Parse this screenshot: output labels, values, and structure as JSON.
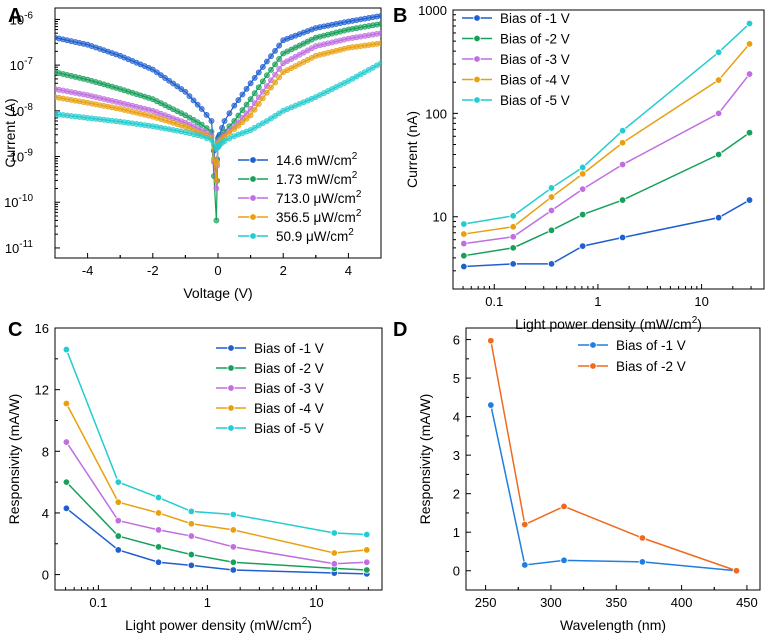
{
  "chart_data": [
    {
      "panel": "A",
      "type": "scatter",
      "xlabel": "Voltage (V)",
      "ylabel": "Current (A)",
      "yscale": "log",
      "xlim": [
        -5,
        5
      ],
      "ylim_exp": [
        -11,
        -6
      ],
      "xticks": [
        -4,
        -2,
        0,
        2,
        4
      ],
      "yticks_exp": [
        -11,
        -10,
        -9,
        -8,
        -7,
        -6
      ],
      "ytick_labels": [
        "10",
        "10",
        "10",
        "10",
        "10",
        "10"
      ],
      "ytick_sups": [
        "-11",
        "-10",
        "-9",
        "-8",
        "-7",
        "-6"
      ],
      "legend_position": "bottom-right",
      "series": [
        {
          "name": "14.6 mW/cm",
          "sup": "2",
          "color": "#1f5fd0",
          "x": [
            -5,
            -4,
            -3,
            -2,
            -1,
            -0.5,
            -0.2,
            -0.05,
            0,
            0.05,
            0.2,
            0.5,
            1,
            1.5,
            2,
            3,
            4,
            5
          ],
          "y": [
            4e-07,
            2.8e-07,
            1.6e-07,
            8e-08,
            2.6e-08,
            1.1e-08,
            6e-09,
            3e-10,
            2.5e-09,
            3e-09,
            6e-09,
            1.3e-08,
            4e-08,
            1.2e-07,
            3.5e-07,
            6.5e-07,
            9e-07,
            1.2e-06
          ]
        },
        {
          "name": "1.73 mW/cm",
          "sup": "2",
          "color": "#17a05a",
          "x": [
            -5,
            -4,
            -3,
            -2,
            -1,
            -0.5,
            -0.2,
            -0.05,
            0,
            0.05,
            0.2,
            0.5,
            1,
            1.5,
            2,
            3,
            4,
            5
          ],
          "y": [
            7e-08,
            4.8e-08,
            3e-08,
            1.8e-08,
            8e-09,
            5e-09,
            3.5e-09,
            4e-11,
            2.2e-09,
            2.5e-09,
            3.5e-09,
            6e-09,
            1.8e-08,
            6e-08,
            1.8e-07,
            4e-07,
            6e-07,
            8e-07
          ]
        },
        {
          "name": "713.0 μW/cm",
          "sup": "2",
          "color": "#c06ee0",
          "x": [
            -5,
            -4,
            -3,
            -2,
            -1,
            -0.5,
            -0.2,
            -0.05,
            0,
            0.05,
            0.2,
            0.5,
            1,
            1.5,
            2,
            3,
            4,
            5
          ],
          "y": [
            3e-08,
            2.2e-08,
            1.5e-08,
            1e-08,
            5.5e-09,
            3.8e-09,
            2.9e-09,
            2e-10,
            2e-09,
            2.3e-09,
            3e-09,
            4.5e-09,
            1.1e-08,
            3.5e-08,
            1.1e-07,
            2.6e-07,
            3.8e-07,
            5e-07
          ]
        },
        {
          "name": "356.5 μW/cm",
          "sup": "2",
          "color": "#e8a010",
          "x": [
            -5,
            -4,
            -3,
            -2,
            -1,
            -0.5,
            -0.2,
            -0.05,
            0,
            0.05,
            0.2,
            0.5,
            1,
            1.5,
            2,
            3,
            4,
            5
          ],
          "y": [
            2e-08,
            1.5e-08,
            1.1e-08,
            7.5e-09,
            4.5e-09,
            3.2e-09,
            2.6e-09,
            3e-10,
            1.8e-09,
            2.1e-09,
            2.7e-09,
            4e-09,
            8e-09,
            2.5e-08,
            7e-08,
            1.6e-07,
            2.4e-07,
            3e-07
          ]
        },
        {
          "name": "50.9 μW/cm",
          "sup": "2",
          "color": "#22ccd0",
          "x": [
            -5,
            -4,
            -3,
            -2,
            -1,
            -0.5,
            -0.2,
            -0.05,
            0,
            0.05,
            0.2,
            0.5,
            1,
            1.5,
            2,
            3,
            4,
            5
          ],
          "y": [
            8.5e-09,
            7e-09,
            5.8e-09,
            4.6e-09,
            3.4e-09,
            2.8e-09,
            2.3e-09,
            1.5e-09,
            1.6e-09,
            1.8e-09,
            2.2e-09,
            2.8e-09,
            3.8e-09,
            6e-09,
            1e-08,
            2e-08,
            4.5e-08,
            1.1e-07
          ]
        }
      ]
    },
    {
      "panel": "B",
      "type": "line",
      "xlabel": "Light power density (mW/cm",
      "xlabel_sup": "2",
      "xlabel_end": ")",
      "ylabel": "Current (nA)",
      "xscale": "log",
      "yscale": "log",
      "xlim": [
        0.04,
        40
      ],
      "ylim": [
        2,
        1000
      ],
      "xticks": [
        0.1,
        1,
        10
      ],
      "xtick_labels": [
        "0.1",
        "1",
        "10"
      ],
      "yticks": [
        10,
        100,
        1000
      ],
      "ytick_labels": [
        "10",
        "100",
        "1000"
      ],
      "legend_position": "top-left",
      "x": [
        0.0509,
        0.1523,
        0.3565,
        0.713,
        1.73,
        14.6,
        29.0
      ],
      "series": [
        {
          "name": "Bias of -1 V",
          "color": "#1f5fd0",
          "values": [
            3.3,
            3.5,
            3.5,
            5.2,
            6.3,
            9.8,
            14.5
          ]
        },
        {
          "name": "Bias of -2 V",
          "color": "#17a05a",
          "values": [
            4.2,
            5.0,
            7.4,
            10.5,
            14.5,
            40,
            65
          ]
        },
        {
          "name": "Bias of -3 V",
          "color": "#c06ee0",
          "values": [
            5.5,
            6.4,
            11.5,
            18.5,
            32,
            100,
            240
          ]
        },
        {
          "name": "Bias of -4 V",
          "color": "#e8a010",
          "values": [
            6.8,
            8.0,
            15.5,
            26,
            52,
            210,
            470
          ]
        },
        {
          "name": "Bias of -5 V",
          "color": "#22ccd0",
          "values": [
            8.5,
            10.2,
            19,
            30,
            68,
            390,
            740
          ]
        }
      ]
    },
    {
      "panel": "C",
      "type": "line",
      "xlabel": "Light power density (mW/cm",
      "xlabel_sup": "2",
      "xlabel_end": ")",
      "ylabel": "Responsivity (mA/W)",
      "xscale": "log",
      "xlim": [
        0.04,
        40
      ],
      "ylim": [
        -1,
        16
      ],
      "xticks": [
        0.1,
        1,
        10
      ],
      "xtick_labels": [
        "0.1",
        "1",
        "10"
      ],
      "yticks": [
        0,
        4,
        8,
        12,
        16
      ],
      "ytick_labels": [
        "0",
        "4",
        "8",
        "12",
        "16"
      ],
      "legend_position": "top-right",
      "x": [
        0.0509,
        0.1523,
        0.3565,
        0.713,
        1.73,
        14.6,
        29.0
      ],
      "series": [
        {
          "name": "Bias of -1 V",
          "color": "#1f5fd0",
          "values": [
            4.3,
            1.6,
            0.8,
            0.6,
            0.3,
            0.1,
            0.05
          ]
        },
        {
          "name": "Bias of -2 V",
          "color": "#17a05a",
          "values": [
            6.0,
            2.5,
            1.8,
            1.3,
            0.8,
            0.4,
            0.3
          ]
        },
        {
          "name": "Bias of -3 V",
          "color": "#c06ee0",
          "values": [
            8.6,
            3.5,
            2.9,
            2.5,
            1.8,
            0.7,
            0.8
          ]
        },
        {
          "name": "Bias of -4 V",
          "color": "#e8a010",
          "values": [
            11.1,
            4.7,
            4.0,
            3.3,
            2.9,
            1.4,
            1.6
          ]
        },
        {
          "name": "Bias of -5 V",
          "color": "#22ccd0",
          "values": [
            14.6,
            6.0,
            5.0,
            4.1,
            3.9,
            2.7,
            2.6
          ]
        }
      ]
    },
    {
      "panel": "D",
      "type": "line",
      "xlabel": "Wavelength (nm)",
      "ylabel": "Responsivity (mA/W)",
      "xlim": [
        235,
        460
      ],
      "ylim": [
        -0.5,
        6.3
      ],
      "xticks": [
        250,
        300,
        350,
        400,
        450
      ],
      "xtick_labels": [
        "250",
        "300",
        "350",
        "400",
        "450"
      ],
      "yticks": [
        0,
        1,
        2,
        3,
        4,
        5,
        6
      ],
      "ytick_labels": [
        "0",
        "1",
        "2",
        "3",
        "4",
        "5",
        "6"
      ],
      "legend_position": "top-right",
      "x": [
        254,
        280,
        310,
        370,
        442
      ],
      "series": [
        {
          "name": "Bias of -1 V",
          "color": "#1f7ee0",
          "values": [
            4.3,
            0.15,
            0.27,
            0.23,
            0.0
          ]
        },
        {
          "name": "Bias of -2 V",
          "color": "#f06a1e",
          "values": [
            5.97,
            1.2,
            1.67,
            0.85,
            0.0
          ]
        }
      ]
    }
  ],
  "panel_letters": [
    "A",
    "B",
    "C",
    "D"
  ]
}
